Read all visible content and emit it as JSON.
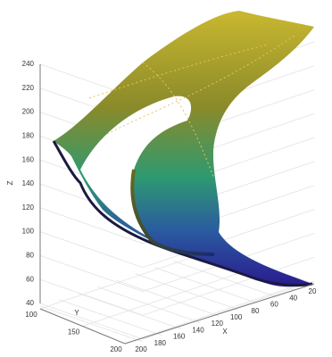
{
  "chart_data": {
    "type": "surface",
    "xlabel": "X",
    "ylabel": "Y",
    "zlabel": "Z",
    "xlim": [
      20,
      200
    ],
    "xticks": [
      200,
      180,
      160,
      140,
      120,
      100,
      80,
      60,
      40,
      20
    ],
    "ylim": [
      100,
      200
    ],
    "yticks": [
      100,
      150,
      200
    ],
    "zlim": [
      40,
      240
    ],
    "zticks": [
      40,
      60,
      80,
      100,
      120,
      140,
      160,
      180,
      200,
      220,
      240
    ],
    "grid": true
  }
}
